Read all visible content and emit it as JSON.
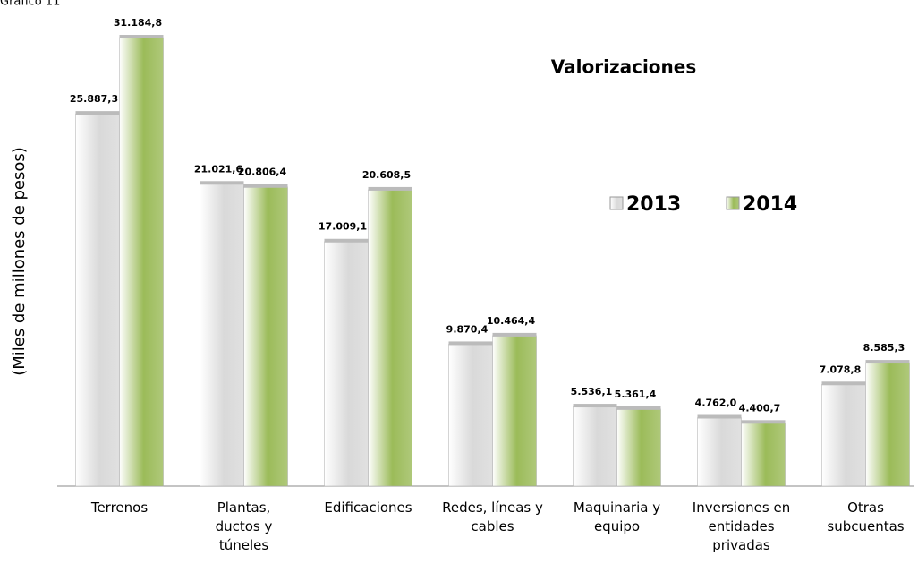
{
  "chart_data": {
    "type": "bar",
    "label": "Gráfico 11",
    "title": "Valorizaciones",
    "y_axis_label": "(Miles de millones de pesos)",
    "categories": [
      "Terrenos",
      "Plantas, ductos y túneles",
      "Edificaciones",
      "Redes, líneas y cables",
      "Maquinaria y equipo",
      "Inversiones en entidades privadas",
      "Otras subcuentas"
    ],
    "series": [
      {
        "name": "2013",
        "color": "#d9d9d9",
        "values": [
          25887.3,
          21021.6,
          17009.1,
          9870.4,
          5536.1,
          4762.0,
          7078.8
        ],
        "value_labels": [
          "25.887,3",
          "21.021,6",
          "17.009,1",
          "9.870,4",
          "5.536,1",
          "4.762,0",
          "7.078,8"
        ]
      },
      {
        "name": "2014",
        "color": "#9bbb59",
        "values": [
          31184.8,
          20806.4,
          20608.5,
          10464.4,
          5361.4,
          4400.7,
          8585.3
        ],
        "value_labels": [
          "31.184,8",
          "20.806,4",
          "20.608,5",
          "10.464,4",
          "5.361,4",
          "4.400,7",
          "8.585,3"
        ]
      }
    ],
    "ylim": [
      0,
      33800
    ],
    "legend": "right"
  }
}
